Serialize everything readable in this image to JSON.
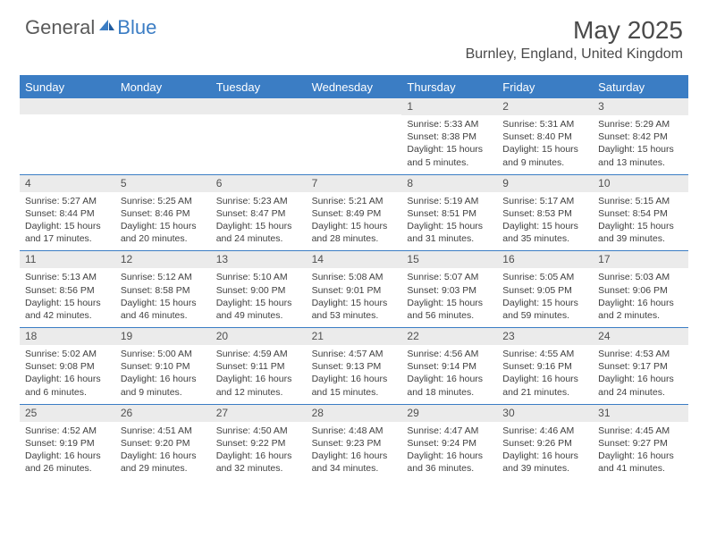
{
  "logo": {
    "general": "General",
    "blue": "Blue"
  },
  "title": "May 2025",
  "location": "Burnley, England, United Kingdom",
  "colors": {
    "accent": "#3b7dc4",
    "daynum_bg": "#ebebeb",
    "text_dark": "#4a4a4a",
    "text_body": "#404040",
    "logo_gray": "#5a5a5a"
  },
  "dayHeaders": [
    "Sunday",
    "Monday",
    "Tuesday",
    "Wednesday",
    "Thursday",
    "Friday",
    "Saturday"
  ],
  "weeks": [
    [
      {
        "n": "",
        "lines": []
      },
      {
        "n": "",
        "lines": []
      },
      {
        "n": "",
        "lines": []
      },
      {
        "n": "",
        "lines": []
      },
      {
        "n": "1",
        "lines": [
          "Sunrise: 5:33 AM",
          "Sunset: 8:38 PM",
          "Daylight: 15 hours and 5 minutes."
        ]
      },
      {
        "n": "2",
        "lines": [
          "Sunrise: 5:31 AM",
          "Sunset: 8:40 PM",
          "Daylight: 15 hours and 9 minutes."
        ]
      },
      {
        "n": "3",
        "lines": [
          "Sunrise: 5:29 AM",
          "Sunset: 8:42 PM",
          "Daylight: 15 hours and 13 minutes."
        ]
      }
    ],
    [
      {
        "n": "4",
        "lines": [
          "Sunrise: 5:27 AM",
          "Sunset: 8:44 PM",
          "Daylight: 15 hours and 17 minutes."
        ]
      },
      {
        "n": "5",
        "lines": [
          "Sunrise: 5:25 AM",
          "Sunset: 8:46 PM",
          "Daylight: 15 hours and 20 minutes."
        ]
      },
      {
        "n": "6",
        "lines": [
          "Sunrise: 5:23 AM",
          "Sunset: 8:47 PM",
          "Daylight: 15 hours and 24 minutes."
        ]
      },
      {
        "n": "7",
        "lines": [
          "Sunrise: 5:21 AM",
          "Sunset: 8:49 PM",
          "Daylight: 15 hours and 28 minutes."
        ]
      },
      {
        "n": "8",
        "lines": [
          "Sunrise: 5:19 AM",
          "Sunset: 8:51 PM",
          "Daylight: 15 hours and 31 minutes."
        ]
      },
      {
        "n": "9",
        "lines": [
          "Sunrise: 5:17 AM",
          "Sunset: 8:53 PM",
          "Daylight: 15 hours and 35 minutes."
        ]
      },
      {
        "n": "10",
        "lines": [
          "Sunrise: 5:15 AM",
          "Sunset: 8:54 PM",
          "Daylight: 15 hours and 39 minutes."
        ]
      }
    ],
    [
      {
        "n": "11",
        "lines": [
          "Sunrise: 5:13 AM",
          "Sunset: 8:56 PM",
          "Daylight: 15 hours and 42 minutes."
        ]
      },
      {
        "n": "12",
        "lines": [
          "Sunrise: 5:12 AM",
          "Sunset: 8:58 PM",
          "Daylight: 15 hours and 46 minutes."
        ]
      },
      {
        "n": "13",
        "lines": [
          "Sunrise: 5:10 AM",
          "Sunset: 9:00 PM",
          "Daylight: 15 hours and 49 minutes."
        ]
      },
      {
        "n": "14",
        "lines": [
          "Sunrise: 5:08 AM",
          "Sunset: 9:01 PM",
          "Daylight: 15 hours and 53 minutes."
        ]
      },
      {
        "n": "15",
        "lines": [
          "Sunrise: 5:07 AM",
          "Sunset: 9:03 PM",
          "Daylight: 15 hours and 56 minutes."
        ]
      },
      {
        "n": "16",
        "lines": [
          "Sunrise: 5:05 AM",
          "Sunset: 9:05 PM",
          "Daylight: 15 hours and 59 minutes."
        ]
      },
      {
        "n": "17",
        "lines": [
          "Sunrise: 5:03 AM",
          "Sunset: 9:06 PM",
          "Daylight: 16 hours and 2 minutes."
        ]
      }
    ],
    [
      {
        "n": "18",
        "lines": [
          "Sunrise: 5:02 AM",
          "Sunset: 9:08 PM",
          "Daylight: 16 hours and 6 minutes."
        ]
      },
      {
        "n": "19",
        "lines": [
          "Sunrise: 5:00 AM",
          "Sunset: 9:10 PM",
          "Daylight: 16 hours and 9 minutes."
        ]
      },
      {
        "n": "20",
        "lines": [
          "Sunrise: 4:59 AM",
          "Sunset: 9:11 PM",
          "Daylight: 16 hours and 12 minutes."
        ]
      },
      {
        "n": "21",
        "lines": [
          "Sunrise: 4:57 AM",
          "Sunset: 9:13 PM",
          "Daylight: 16 hours and 15 minutes."
        ]
      },
      {
        "n": "22",
        "lines": [
          "Sunrise: 4:56 AM",
          "Sunset: 9:14 PM",
          "Daylight: 16 hours and 18 minutes."
        ]
      },
      {
        "n": "23",
        "lines": [
          "Sunrise: 4:55 AM",
          "Sunset: 9:16 PM",
          "Daylight: 16 hours and 21 minutes."
        ]
      },
      {
        "n": "24",
        "lines": [
          "Sunrise: 4:53 AM",
          "Sunset: 9:17 PM",
          "Daylight: 16 hours and 24 minutes."
        ]
      }
    ],
    [
      {
        "n": "25",
        "lines": [
          "Sunrise: 4:52 AM",
          "Sunset: 9:19 PM",
          "Daylight: 16 hours and 26 minutes."
        ]
      },
      {
        "n": "26",
        "lines": [
          "Sunrise: 4:51 AM",
          "Sunset: 9:20 PM",
          "Daylight: 16 hours and 29 minutes."
        ]
      },
      {
        "n": "27",
        "lines": [
          "Sunrise: 4:50 AM",
          "Sunset: 9:22 PM",
          "Daylight: 16 hours and 32 minutes."
        ]
      },
      {
        "n": "28",
        "lines": [
          "Sunrise: 4:48 AM",
          "Sunset: 9:23 PM",
          "Daylight: 16 hours and 34 minutes."
        ]
      },
      {
        "n": "29",
        "lines": [
          "Sunrise: 4:47 AM",
          "Sunset: 9:24 PM",
          "Daylight: 16 hours and 36 minutes."
        ]
      },
      {
        "n": "30",
        "lines": [
          "Sunrise: 4:46 AM",
          "Sunset: 9:26 PM",
          "Daylight: 16 hours and 39 minutes."
        ]
      },
      {
        "n": "31",
        "lines": [
          "Sunrise: 4:45 AM",
          "Sunset: 9:27 PM",
          "Daylight: 16 hours and 41 minutes."
        ]
      }
    ]
  ]
}
